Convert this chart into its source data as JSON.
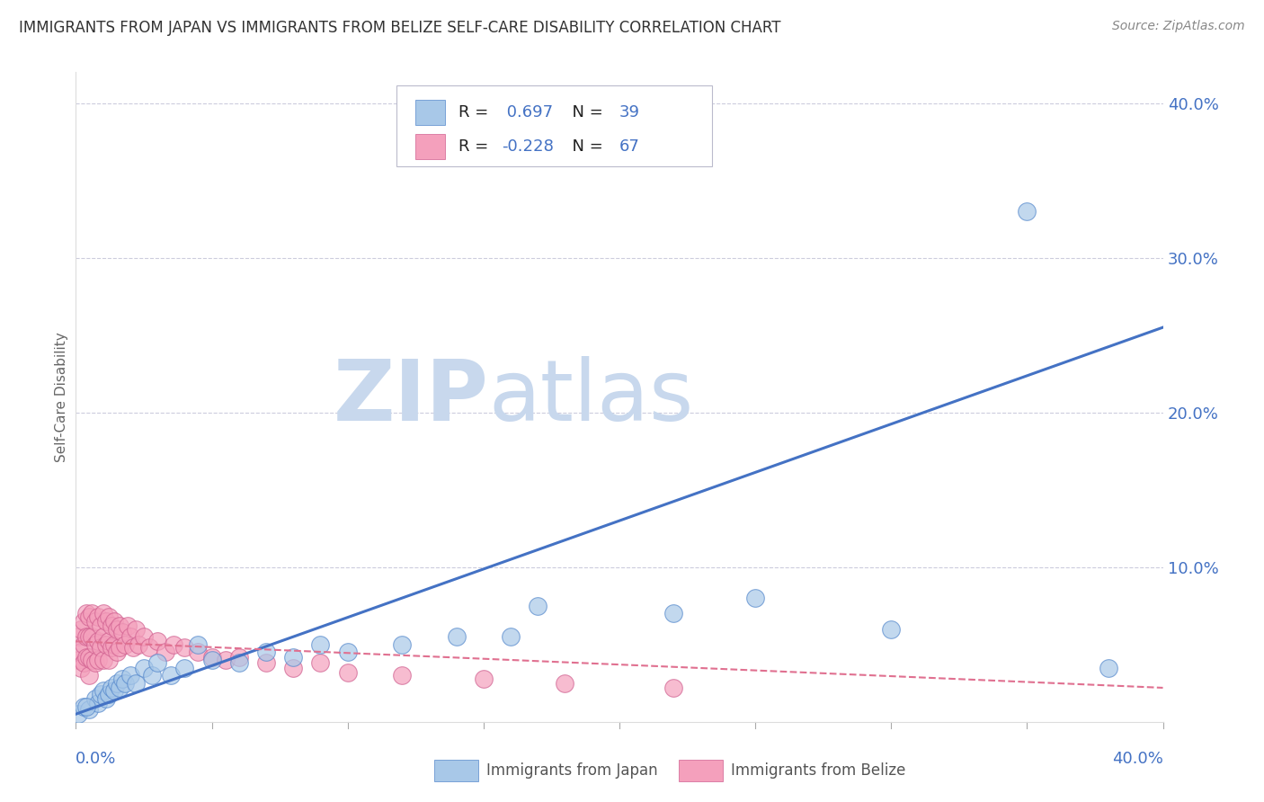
{
  "title": "IMMIGRANTS FROM JAPAN VS IMMIGRANTS FROM BELIZE SELF-CARE DISABILITY CORRELATION CHART",
  "source": "Source: ZipAtlas.com",
  "ylabel": "Self-Care Disability",
  "xlim": [
    0.0,
    0.4
  ],
  "ylim": [
    0.0,
    0.42
  ],
  "japan_R": 0.697,
  "japan_N": 39,
  "belize_R": -0.228,
  "belize_N": 67,
  "japan_color": "#A8C8E8",
  "belize_color": "#F4A0BC",
  "japan_edge_color": "#5588CC",
  "belize_edge_color": "#D06090",
  "japan_line_color": "#4472C4",
  "belize_line_color": "#E07090",
  "watermark_zip": "ZIP",
  "watermark_atlas": "atlas",
  "watermark_color": "#C8D8ED",
  "background_color": "#FFFFFF",
  "grid_color": "#CCCCDD",
  "ytick_vals": [
    0.0,
    0.1,
    0.2,
    0.3,
    0.4
  ],
  "ytick_labels": [
    "",
    "10.0%",
    "20.0%",
    "30.0%",
    "40.0%"
  ],
  "japan_x": [
    0.001,
    0.003,
    0.005,
    0.007,
    0.008,
    0.009,
    0.01,
    0.011,
    0.012,
    0.013,
    0.014,
    0.015,
    0.016,
    0.017,
    0.018,
    0.02,
    0.022,
    0.025,
    0.028,
    0.03,
    0.035,
    0.04,
    0.05,
    0.06,
    0.07,
    0.08,
    0.09,
    0.1,
    0.12,
    0.14,
    0.16,
    0.17,
    0.22,
    0.25,
    0.3,
    0.35,
    0.38,
    0.004,
    0.045
  ],
  "japan_y": [
    0.005,
    0.01,
    0.008,
    0.015,
    0.012,
    0.018,
    0.02,
    0.015,
    0.018,
    0.022,
    0.02,
    0.025,
    0.022,
    0.028,
    0.025,
    0.03,
    0.025,
    0.035,
    0.03,
    0.038,
    0.03,
    0.035,
    0.04,
    0.038,
    0.045,
    0.042,
    0.05,
    0.045,
    0.05,
    0.055,
    0.055,
    0.075,
    0.07,
    0.08,
    0.06,
    0.33,
    0.035,
    0.01,
    0.05
  ],
  "belize_x": [
    0.001,
    0.001,
    0.002,
    0.002,
    0.002,
    0.003,
    0.003,
    0.003,
    0.004,
    0.004,
    0.004,
    0.005,
    0.005,
    0.005,
    0.005,
    0.006,
    0.006,
    0.006,
    0.007,
    0.007,
    0.007,
    0.008,
    0.008,
    0.008,
    0.009,
    0.009,
    0.01,
    0.01,
    0.01,
    0.011,
    0.011,
    0.012,
    0.012,
    0.012,
    0.013,
    0.013,
    0.014,
    0.014,
    0.015,
    0.015,
    0.016,
    0.016,
    0.017,
    0.018,
    0.019,
    0.02,
    0.021,
    0.022,
    0.023,
    0.025,
    0.027,
    0.03,
    0.033,
    0.036,
    0.04,
    0.045,
    0.05,
    0.055,
    0.06,
    0.07,
    0.08,
    0.09,
    0.1,
    0.12,
    0.15,
    0.18,
    0.22
  ],
  "belize_y": [
    0.055,
    0.04,
    0.06,
    0.045,
    0.035,
    0.065,
    0.05,
    0.038,
    0.07,
    0.055,
    0.042,
    0.068,
    0.055,
    0.042,
    0.03,
    0.07,
    0.055,
    0.04,
    0.065,
    0.05,
    0.038,
    0.068,
    0.052,
    0.04,
    0.062,
    0.048,
    0.07,
    0.055,
    0.04,
    0.065,
    0.05,
    0.068,
    0.052,
    0.04,
    0.062,
    0.048,
    0.065,
    0.05,
    0.06,
    0.045,
    0.062,
    0.048,
    0.058,
    0.05,
    0.062,
    0.055,
    0.048,
    0.06,
    0.05,
    0.055,
    0.048,
    0.052,
    0.045,
    0.05,
    0.048,
    0.045,
    0.042,
    0.04,
    0.042,
    0.038,
    0.035,
    0.038,
    0.032,
    0.03,
    0.028,
    0.025,
    0.022
  ],
  "legend_label_japan": "R =  0.697   N = 39",
  "legend_label_belize": "R = -0.228   N = 67",
  "bottom_legend_japan": "Immigrants from Japan",
  "bottom_legend_belize": "Immigrants from Belize"
}
